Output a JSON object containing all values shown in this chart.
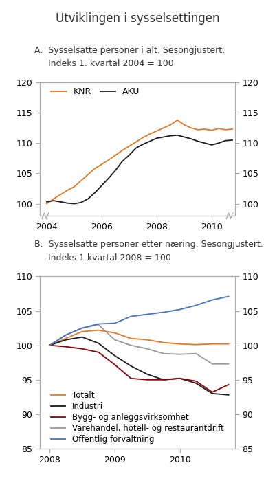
{
  "title": "Utviklingen i sysselsettingen",
  "panel_a": {
    "label_a": "A.  Sysselsatte personer i alt. Sesongjustert.",
    "label_b": "     Indeks 1. kvartal 2004 = 100",
    "ylim": [
      98.0,
      120
    ],
    "yticks": [
      100,
      105,
      110,
      115,
      120
    ],
    "xlim": [
      2003.75,
      2010.85
    ],
    "xticks": [
      2004,
      2006,
      2008,
      2010
    ],
    "knr_x": [
      2004.0,
      2004.25,
      2004.5,
      2004.75,
      2005.0,
      2005.25,
      2005.5,
      2005.75,
      2006.0,
      2006.25,
      2006.5,
      2006.75,
      2007.0,
      2007.25,
      2007.5,
      2007.75,
      2008.0,
      2008.25,
      2008.5,
      2008.75,
      2009.0,
      2009.25,
      2009.5,
      2009.75,
      2010.0,
      2010.25,
      2010.5,
      2010.75
    ],
    "knr_y": [
      100.0,
      100.8,
      101.5,
      102.2,
      102.8,
      103.8,
      104.8,
      105.8,
      106.5,
      107.2,
      108.0,
      108.8,
      109.5,
      110.2,
      110.9,
      111.5,
      112.0,
      112.5,
      113.0,
      113.8,
      113.0,
      112.5,
      112.2,
      112.3,
      112.1,
      112.4,
      112.2,
      112.3
    ],
    "aku_x": [
      2004.0,
      2004.25,
      2004.5,
      2004.75,
      2005.0,
      2005.25,
      2005.5,
      2005.75,
      2006.0,
      2006.25,
      2006.5,
      2006.75,
      2007.0,
      2007.25,
      2007.5,
      2007.75,
      2008.0,
      2008.25,
      2008.5,
      2008.75,
      2009.0,
      2009.25,
      2009.5,
      2009.75,
      2010.0,
      2010.25,
      2010.5,
      2010.75
    ],
    "aku_y": [
      100.3,
      100.5,
      100.3,
      100.1,
      100.0,
      100.2,
      100.8,
      101.8,
      103.0,
      104.2,
      105.5,
      107.0,
      108.0,
      109.2,
      109.8,
      110.3,
      110.8,
      111.0,
      111.2,
      111.3,
      111.0,
      110.7,
      110.3,
      110.0,
      109.7,
      110.0,
      110.4,
      110.5
    ],
    "knr_color": "#E87722",
    "aku_color": "#1a1a1a"
  },
  "panel_b": {
    "label_a": "B.  Sysselsatte personer etter næring. Sesongjustert.",
    "label_b": "     Indeks 1.kvartal 2008 = 100",
    "ylim": [
      85,
      110
    ],
    "yticks": [
      85,
      90,
      95,
      100,
      105,
      110
    ],
    "xlim": [
      2007.85,
      2010.85
    ],
    "xticks": [
      2008,
      2009,
      2010
    ],
    "x": [
      2008.0,
      2008.25,
      2008.5,
      2008.75,
      2009.0,
      2009.25,
      2009.5,
      2009.75,
      2010.0,
      2010.25,
      2010.5,
      2010.75
    ],
    "totalt": [
      100.0,
      101.0,
      102.0,
      102.2,
      101.8,
      101.0,
      100.8,
      100.4,
      100.2,
      100.1,
      100.2,
      100.2
    ],
    "industri": [
      100.0,
      100.8,
      101.2,
      100.3,
      98.5,
      97.0,
      95.8,
      95.0,
      95.2,
      94.5,
      93.0,
      92.8
    ],
    "bygg": [
      100.0,
      99.8,
      99.5,
      99.0,
      97.2,
      95.2,
      95.0,
      95.0,
      95.2,
      94.8,
      93.2,
      94.3
    ],
    "varehandel": [
      100.0,
      101.5,
      102.5,
      103.0,
      100.8,
      100.0,
      99.5,
      98.8,
      98.7,
      98.8,
      97.3,
      97.3
    ],
    "offentlig": [
      100.0,
      101.5,
      102.5,
      103.1,
      103.2,
      104.2,
      104.5,
      104.8,
      105.2,
      105.8,
      106.6,
      107.1
    ],
    "totalt_color": "#E87722",
    "industri_color": "#1a1a1a",
    "bygg_color": "#8B0000",
    "varehandel_color": "#999999",
    "offentlig_color": "#4472C4",
    "legend_labels": [
      "Totalt",
      "Industri",
      "Bygg- og anleggsvirksomhet",
      "Varehandel, hotell- og restaurantdrift",
      "Offentlig forvaltning"
    ]
  },
  "spine_color": "#aaaaaa",
  "bg_color": "#ffffff"
}
